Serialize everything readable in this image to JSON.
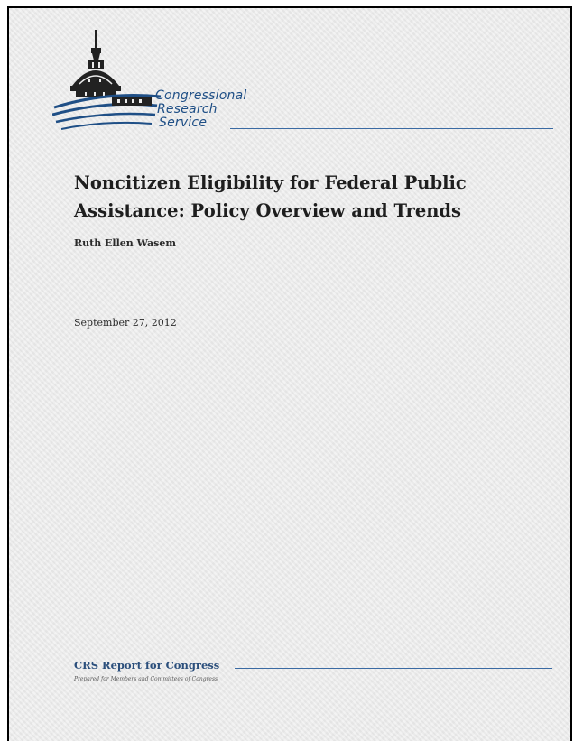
{
  "publisher": {
    "line1": "Congressional",
    "line2": "Research",
    "line3": "Service"
  },
  "title": "Noncitizen Eligibility for Federal Public Assistance: Policy Overview and Trends",
  "author": "Ruth Ellen Wasem",
  "date": "September 27, 2012",
  "footer": {
    "report_label": "CRS Report for Congress",
    "prepared_for": "Prepared for Members and Committees of Congress"
  },
  "colors": {
    "brand": "#1f4f86",
    "page": "#ececec"
  }
}
